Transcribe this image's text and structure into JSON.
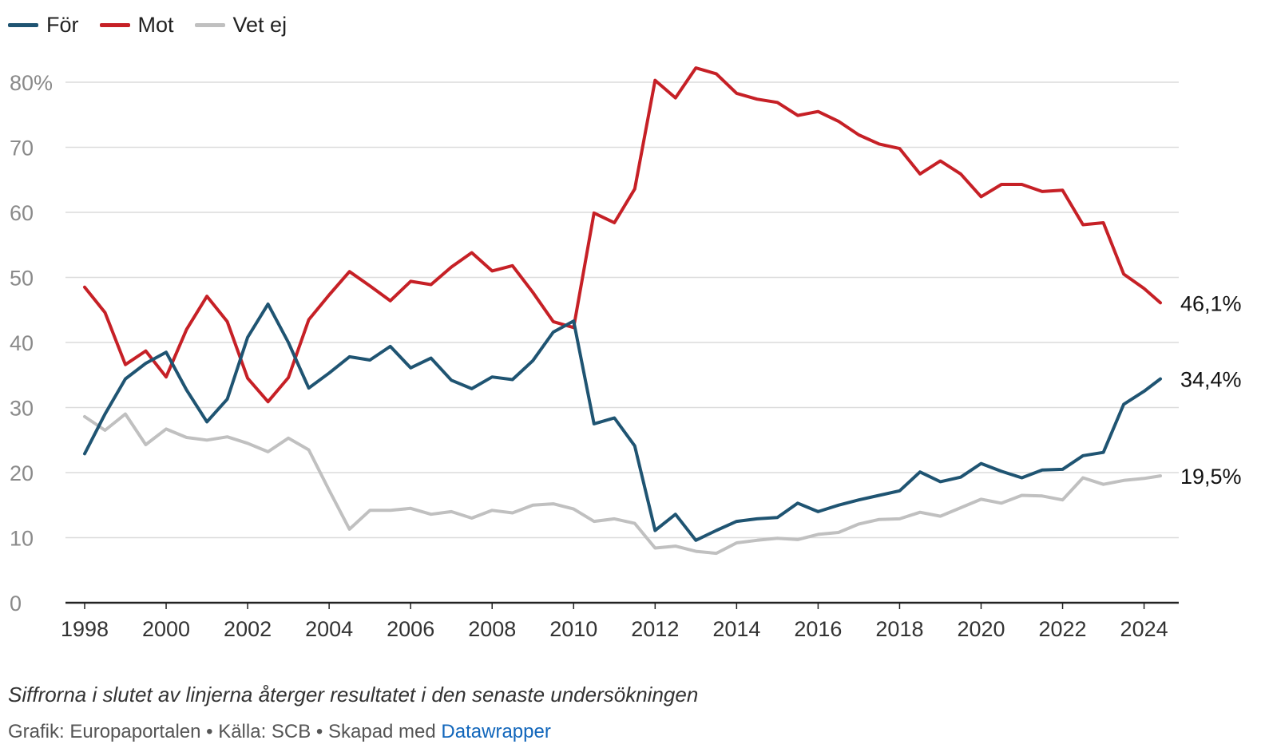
{
  "chart_data": {
    "type": "line",
    "ylim": [
      0,
      80
    ],
    "yticks": [
      0,
      10,
      20,
      30,
      40,
      50,
      60,
      70,
      80
    ],
    "ytick_labels": [
      "0",
      "10",
      "20",
      "30",
      "40",
      "50",
      "60",
      "70",
      "80%"
    ],
    "xticks": [
      1998,
      2000,
      2002,
      2004,
      2006,
      2008,
      2010,
      2012,
      2014,
      2016,
      2018,
      2020,
      2022,
      2024
    ],
    "xtick_labels": [
      "1998",
      "2000",
      "2002",
      "2004",
      "2006",
      "2008",
      "2010",
      "2012",
      "2014",
      "2016",
      "2018",
      "2020",
      "2022",
      "2024"
    ],
    "grid": true,
    "legend_position": "top-left",
    "series": [
      {
        "name": "För",
        "color": "#1f5472",
        "end_label": "34,4%",
        "x": [
          1998,
          1998.5,
          1999,
          1999.5,
          2000,
          2000.5,
          2001,
          2001.5,
          2002,
          2002.5,
          2003,
          2003.5,
          2004,
          2004.5,
          2005,
          2005.5,
          2006,
          2006.5,
          2007,
          2007.5,
          2008,
          2008.5,
          2009,
          2009.5,
          2010,
          2010.5,
          2011,
          2011.5,
          2012,
          2012.5,
          2013,
          2013.5,
          2014,
          2014.5,
          2015,
          2015.5,
          2016,
          2016.5,
          2017,
          2017.5,
          2018,
          2018.5,
          2019,
          2019.5,
          2020,
          2020.5,
          2021,
          2021.5,
          2022,
          2022.5,
          2023,
          2023.5,
          2024,
          2024.4
        ],
        "values": [
          22.9,
          29.0,
          34.4,
          36.8,
          38.5,
          32.7,
          27.8,
          31.3,
          40.8,
          45.9,
          40.0,
          33.0,
          35.3,
          37.8,
          37.3,
          39.4,
          36.1,
          37.6,
          34.2,
          32.9,
          34.7,
          34.3,
          37.2,
          41.6,
          43.3,
          27.5,
          28.4,
          24.1,
          11.1,
          13.6,
          9.6,
          11.1,
          12.5,
          12.9,
          13.1,
          15.3,
          14.0,
          15.0,
          15.8,
          16.5,
          17.2,
          20.1,
          18.6,
          19.3,
          21.4,
          20.2,
          19.2,
          20.4,
          20.5,
          22.6,
          23.1,
          30.5,
          32.5,
          34.4
        ]
      },
      {
        "name": "Mot",
        "color": "#c62026",
        "end_label": "46,1%",
        "x": [
          1998,
          1998.5,
          1999,
          1999.5,
          2000,
          2000.5,
          2001,
          2001.5,
          2002,
          2002.5,
          2003,
          2003.5,
          2004,
          2004.5,
          2005,
          2005.5,
          2006,
          2006.5,
          2007,
          2007.5,
          2008,
          2008.5,
          2009,
          2009.5,
          2010,
          2010.5,
          2011,
          2011.5,
          2012,
          2012.5,
          2013,
          2013.5,
          2014,
          2014.5,
          2015,
          2015.5,
          2016,
          2016.5,
          2017,
          2017.5,
          2018,
          2018.5,
          2019,
          2019.5,
          2020,
          2020.5,
          2021,
          2021.5,
          2022,
          2022.5,
          2023,
          2023.5,
          2024,
          2024.4
        ],
        "values": [
          48.5,
          44.6,
          36.6,
          38.7,
          34.7,
          42.0,
          47.1,
          43.2,
          34.5,
          30.9,
          34.6,
          43.5,
          47.3,
          50.9,
          48.7,
          46.4,
          49.4,
          48.9,
          51.6,
          53.8,
          51.0,
          51.8,
          47.7,
          43.2,
          42.3,
          59.9,
          58.4,
          63.6,
          80.3,
          77.6,
          82.2,
          81.3,
          78.3,
          77.4,
          76.9,
          74.9,
          75.5,
          74.0,
          71.9,
          70.5,
          69.8,
          65.9,
          67.9,
          65.9,
          62.4,
          64.3,
          64.3,
          63.2,
          63.4,
          58.1,
          58.4,
          50.5,
          48.3,
          46.1
        ]
      },
      {
        "name": "Vet ej",
        "color": "#c0c0c0",
        "end_label": "19,5%",
        "x": [
          1998,
          1998.5,
          1999,
          1999.5,
          2000,
          2000.5,
          2001,
          2001.5,
          2002,
          2002.5,
          2003,
          2003.5,
          2004,
          2004.5,
          2005,
          2005.5,
          2006,
          2006.5,
          2007,
          2007.5,
          2008,
          2008.5,
          2009,
          2009.5,
          2010,
          2010.5,
          2011,
          2011.5,
          2012,
          2012.5,
          2013,
          2013.5,
          2014,
          2014.5,
          2015,
          2015.5,
          2016,
          2016.5,
          2017,
          2017.5,
          2018,
          2018.5,
          2019,
          2019.5,
          2020,
          2020.5,
          2021,
          2021.5,
          2022,
          2022.5,
          2023,
          2023.5,
          2024,
          2024.4
        ],
        "values": [
          28.6,
          26.5,
          29.0,
          24.3,
          26.7,
          25.4,
          25.0,
          25.5,
          24.5,
          23.2,
          25.3,
          23.5,
          17.3,
          11.3,
          14.2,
          14.2,
          14.5,
          13.6,
          14.0,
          13.0,
          14.2,
          13.8,
          15.0,
          15.2,
          14.4,
          12.5,
          12.9,
          12.2,
          8.4,
          8.7,
          7.9,
          7.6,
          9.2,
          9.6,
          9.9,
          9.7,
          10.5,
          10.8,
          12.1,
          12.8,
          12.9,
          13.9,
          13.3,
          14.6,
          15.9,
          15.3,
          16.5,
          16.4,
          15.8,
          19.2,
          18.2,
          18.8,
          19.1,
          19.5
        ]
      }
    ]
  },
  "footer": {
    "note": "Siffrorna i slutet av linjerna återger resultatet i den senaste undersökningen",
    "credits_prefix": "Grafik: Europaportalen • Källa: SCB • Skapad med ",
    "credits_link": "Datawrapper"
  }
}
